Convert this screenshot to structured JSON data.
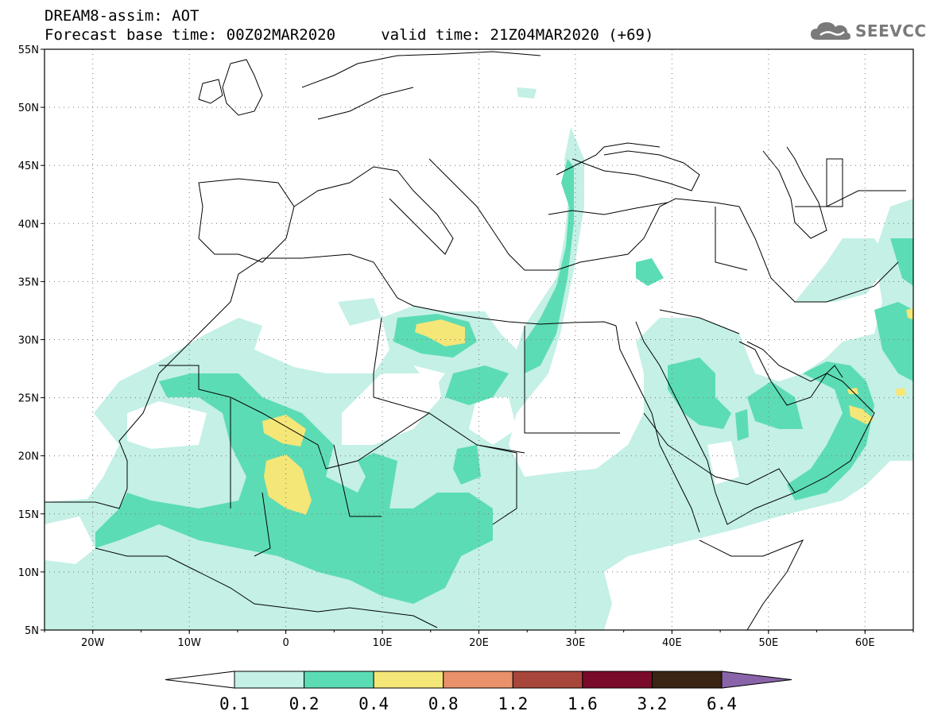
{
  "title": {
    "line1": "DREAM8-assim: AOT",
    "line2": "Forecast base time: 00Z02MAR2020     valid time: 21Z04MAR2020 (+69)"
  },
  "logo": {
    "text": "SEEVCCC",
    "icon": "cloud-icon",
    "color": "#7a7a7a"
  },
  "map": {
    "lon_range": [
      -25,
      65
    ],
    "lat_range": [
      5,
      55
    ],
    "lat_labels": [
      "55N",
      "50N",
      "45N",
      "40N",
      "35N",
      "30N",
      "25N",
      "20N",
      "15N",
      "10N",
      "5N"
    ],
    "lon_labels": [
      "20W",
      "10W",
      "0",
      "10E",
      "20E",
      "30E",
      "40E",
      "50E",
      "60E"
    ],
    "grid": "dotted"
  },
  "colorbar": {
    "ticks": [
      "0.1",
      "0.2",
      "0.4",
      "0.8",
      "1.2",
      "1.6",
      "3.2",
      "6.4"
    ],
    "colors": [
      "#ffffff",
      "#c4f0e6",
      "#5cdcb4",
      "#f5e678",
      "#e8916a",
      "#a8463c",
      "#7a0a2a",
      "#3a2414",
      "#8a64a8"
    ]
  },
  "field_colors": {
    "low": "#c4f0e6",
    "mid": "#5cdcb4",
    "high": "#f5e678"
  }
}
